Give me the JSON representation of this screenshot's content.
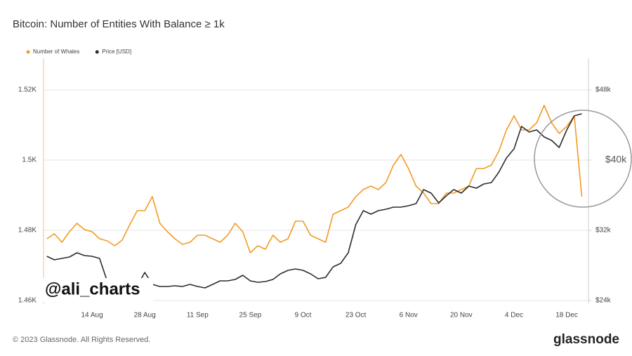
{
  "chart_data": {
    "type": "line",
    "title": "Bitcoin: Number of Entities With Balance ≥ 1k",
    "legend": "top-left",
    "grid": true,
    "categories": [
      null,
      null,
      null,
      null,
      null,
      null,
      "14 Aug",
      null,
      null,
      null,
      null,
      null,
      null,
      "28 Aug",
      null,
      null,
      null,
      null,
      null,
      null,
      "11 Sep",
      null,
      null,
      null,
      null,
      null,
      null,
      "25 Sep",
      null,
      null,
      null,
      null,
      null,
      null,
      "9 Oct",
      null,
      null,
      null,
      null,
      null,
      null,
      "23 Oct",
      null,
      null,
      null,
      null,
      null,
      null,
      "6 Nov",
      null,
      null,
      null,
      null,
      null,
      null,
      "20 Nov",
      null,
      null,
      null,
      null,
      null,
      null,
      "4 Dec",
      null,
      null,
      null,
      null,
      null,
      null,
      "18 Dec",
      null,
      null
    ],
    "series": [
      {
        "name": "Number of Whales",
        "color": "#f29b25",
        "values": [
          1477.6,
          1479,
          1476.6,
          1479.6,
          1482,
          1480.2,
          1479.6,
          1477.6,
          1477,
          1475.6,
          1477.2,
          1481.6,
          1485.6,
          1485.6,
          1489.6,
          1482,
          1479.6,
          1477.6,
          1476,
          1476.6,
          1478.6,
          1478.6,
          1477.6,
          1476.6,
          1478.6,
          1482,
          1479.6,
          1473.6,
          1475.6,
          1474.6,
          1478.6,
          1476.6,
          1477.6,
          1482.6,
          1482.6,
          1478.6,
          1477.6,
          1476.6,
          1484.6,
          1485.6,
          1486.6,
          1489.6,
          1491.6,
          1492.6,
          1491.6,
          1493.6,
          1498.6,
          1501.6,
          1497.6,
          1492.6,
          1490.6,
          1487.6,
          1487.6,
          1490.6,
          1490.6,
          1491.6,
          1492.6,
          1497.6,
          1497.6,
          1498.6,
          1502.6,
          1508.6,
          1512.6,
          1508.6,
          1508.6,
          1510.6,
          1515.6,
          1510.6,
          1507.6,
          1509.6,
          1512.6,
          1489.6
        ]
      },
      {
        "name": "Price [USD]",
        "color": "#2d2d2d",
        "axis": "y2",
        "values": [
          29040,
          28640,
          28800,
          28960,
          29440,
          29120,
          29040,
          28800,
          26240,
          25600,
          25840,
          25760,
          25680,
          27200,
          25840,
          25600,
          25600,
          25680,
          25600,
          25840,
          25600,
          25440,
          25840,
          26240,
          26240,
          26400,
          26880,
          26240,
          26080,
          26160,
          26400,
          27040,
          27440,
          27600,
          27440,
          27040,
          26480,
          26640,
          27840,
          28240,
          29440,
          32640,
          34240,
          33840,
          34240,
          34400,
          34640,
          34640,
          34800,
          35040,
          36640,
          36240,
          35120,
          35920,
          36640,
          36240,
          37040,
          36800,
          37280,
          37440,
          38640,
          40240,
          41280,
          43840,
          43200,
          43440,
          42640,
          42240,
          41440,
          43440,
          45040,
          45280
        ]
      }
    ],
    "ylim": [
      1459.2,
      1529
    ],
    "yticks": [
      {
        "value": 1460,
        "label": "1.46K"
      },
      {
        "value": 1480,
        "label": "1.48K"
      },
      {
        "value": 1500,
        "label": "1.5K"
      },
      {
        "value": 1520,
        "label": "1.52K"
      }
    ],
    "y2lim": [
      23680,
      51600
    ],
    "y2ticks": [
      {
        "value": 24000,
        "label": "$24k"
      },
      {
        "value": 32000,
        "label": "$32k"
      },
      {
        "value": 40000,
        "label": "$40k"
      },
      {
        "value": 48000,
        "label": "$48k"
      }
    ]
  },
  "watermark": "@ali_charts",
  "footer": "© 2023 Glassnode. All Rights Reserved.",
  "logo": "glassnode"
}
